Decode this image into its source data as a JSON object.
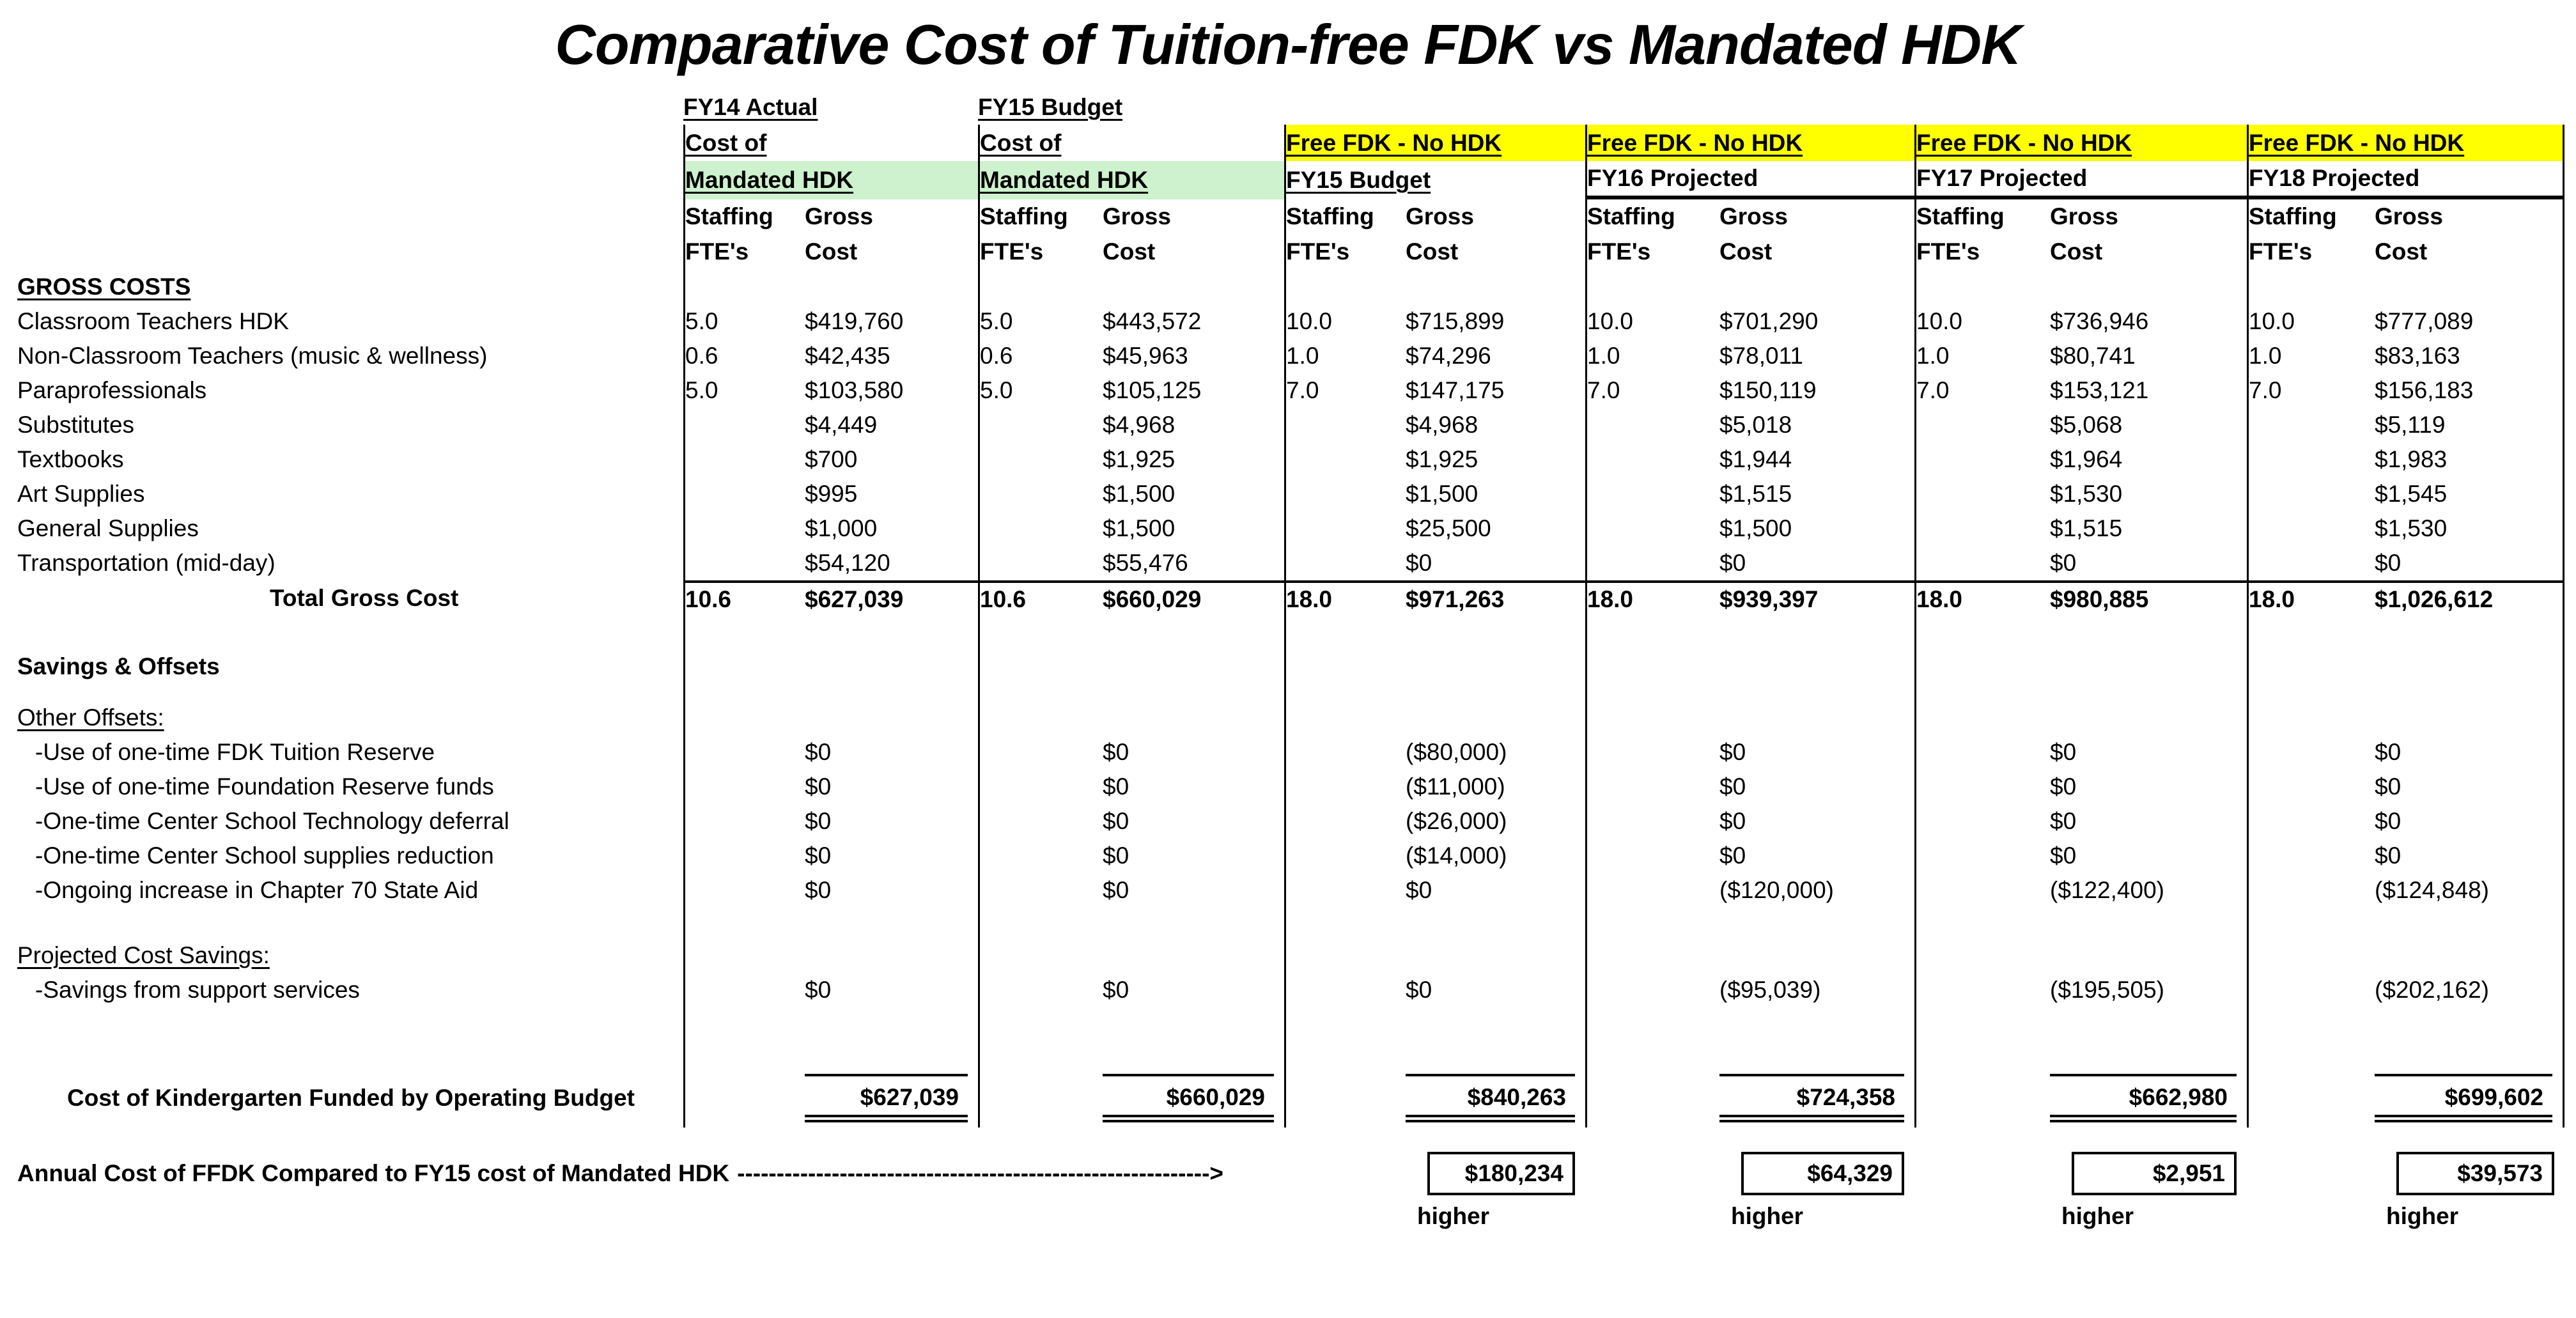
{
  "title": "Comparative Cost of Tuition-free FDK vs Mandated HDK",
  "colors": {
    "highlight_green": "#CDF2CD",
    "highlight_yellow": "#FFFF00",
    "line_black": "#000000"
  },
  "header": {
    "groups": [
      {
        "top": "FY14 Actual",
        "mid": "Cost of",
        "mid_style": "plain",
        "band": "Mandated HDK",
        "band_style": "green"
      },
      {
        "top": "FY15 Budget",
        "mid": "Cost of",
        "mid_style": "plain",
        "band": "Mandated HDK",
        "band_style": "green"
      },
      {
        "top": "",
        "mid": "Free FDK  - No HDK",
        "mid_style": "yellow",
        "band": "FY15 Budget",
        "band_style": "underline"
      },
      {
        "top": "",
        "mid": "Free FDK  - No HDK",
        "mid_style": "yellow",
        "band": "FY16 Projected",
        "band_style": "projline"
      },
      {
        "top": "",
        "mid": "Free FDK  - No HDK",
        "mid_style": "yellow",
        "band": "FY17 Projected",
        "band_style": "projline"
      },
      {
        "top": "",
        "mid": "Free FDK  - No HDK",
        "mid_style": "yellow",
        "band": "FY18 Projected",
        "band_style": "projline"
      }
    ],
    "sub_staffing_line1": "Staffing",
    "sub_staffing_line2": "FTE's",
    "sub_gross_line1": "Gross",
    "sub_gross_line2": "Cost"
  },
  "gross_costs": {
    "section_label": "GROSS COSTS",
    "items": [
      {
        "label": "Classroom Teachers HDK",
        "fte": [
          "5.0",
          "5.0",
          "10.0",
          "10.0",
          "10.0",
          "10.0"
        ],
        "cost": [
          "$419,760",
          "$443,572",
          "$715,899",
          "$701,290",
          "$736,946",
          "$777,089"
        ]
      },
      {
        "label": "Non-Classroom Teachers (music &  wellness)",
        "fte": [
          "0.6",
          "0.6",
          "1.0",
          "1.0",
          "1.0",
          "1.0"
        ],
        "cost": [
          "$42,435",
          "$45,963",
          "$74,296",
          "$78,011",
          "$80,741",
          "$83,163"
        ]
      },
      {
        "label": "Paraprofessionals",
        "fte": [
          "5.0",
          "5.0",
          "7.0",
          "7.0",
          "7.0",
          "7.0"
        ],
        "cost": [
          "$103,580",
          "$105,125",
          "$147,175",
          "$150,119",
          "$153,121",
          "$156,183"
        ]
      },
      {
        "label": "Substitutes",
        "fte": [
          "",
          "",
          "",
          "",
          "",
          ""
        ],
        "cost": [
          "$4,449",
          "$4,968",
          "$4,968",
          "$5,018",
          "$5,068",
          "$5,119"
        ]
      },
      {
        "label": "Textbooks",
        "fte": [
          "",
          "",
          "",
          "",
          "",
          ""
        ],
        "cost": [
          "$700",
          "$1,925",
          "$1,925",
          "$1,944",
          "$1,964",
          "$1,983"
        ]
      },
      {
        "label": "Art Supplies",
        "fte": [
          "",
          "",
          "",
          "",
          "",
          ""
        ],
        "cost": [
          "$995",
          "$1,500",
          "$1,500",
          "$1,515",
          "$1,530",
          "$1,545"
        ]
      },
      {
        "label": "General Supplies",
        "fte": [
          "",
          "",
          "",
          "",
          "",
          ""
        ],
        "cost": [
          "$1,000",
          "$1,500",
          "$25,500",
          "$1,500",
          "$1,515",
          "$1,530"
        ]
      },
      {
        "label": "Transportation (mid-day)",
        "fte": [
          "",
          "",
          "",
          "",
          "",
          ""
        ],
        "cost": [
          "$54,120",
          "$55,476",
          "$0",
          "$0",
          "$0",
          "$0"
        ]
      }
    ],
    "total": {
      "label": "Total Gross Cost",
      "fte": [
        "10.6",
        "10.6",
        "18.0",
        "18.0",
        "18.0",
        "18.0"
      ],
      "cost": [
        "$627,039",
        "$660,029",
        "$971,263",
        "$939,397",
        "$980,885",
        "$1,026,612"
      ]
    }
  },
  "savings": {
    "section_label": "Savings & Offsets",
    "other_offsets_label": "Other Offsets:",
    "offsets": [
      {
        "label": "-Use of one-time FDK Tuition Reserve",
        "values": [
          "$0",
          "$0",
          "($80,000)",
          "$0",
          "$0",
          "$0"
        ]
      },
      {
        "label": "-Use of one-time Foundation Reserve funds",
        "values": [
          "$0",
          "$0",
          "($11,000)",
          "$0",
          "$0",
          "$0"
        ]
      },
      {
        "label": "-One-time Center School Technology deferral",
        "values": [
          "$0",
          "$0",
          "($26,000)",
          "$0",
          "$0",
          "$0"
        ]
      },
      {
        "label": "-One-time Center School supplies reduction",
        "values": [
          "$0",
          "$0",
          "($14,000)",
          "$0",
          "$0",
          "$0"
        ]
      },
      {
        "label": "-Ongoing increase in Chapter 70 State Aid",
        "values": [
          "$0",
          "$0",
          "$0",
          "($120,000)",
          "($122,400)",
          "($124,848)"
        ]
      }
    ],
    "projected_label": "Projected Cost Savings:",
    "projected_item": {
      "label": "-Savings from support services",
      "values": [
        "$0",
        "$0",
        "$0",
        "($95,039)",
        "($195,505)",
        "($202,162)"
      ]
    }
  },
  "footer": {
    "cost_label": "Cost of Kindergarten Funded by  Operating Budget",
    "cost_values": [
      "$627,039",
      "$660,029",
      "$840,263",
      "$724,358",
      "$662,980",
      "$699,602"
    ],
    "annual_label": "Annual Cost of FFDK Compared to FY15 cost of Mandated HDK",
    "annual_dashes": "------------------------------------------------------------>",
    "annual_values": [
      "$180,234",
      "$64,329",
      "$2,951",
      "$39,573"
    ],
    "higher_label": "higher"
  }
}
